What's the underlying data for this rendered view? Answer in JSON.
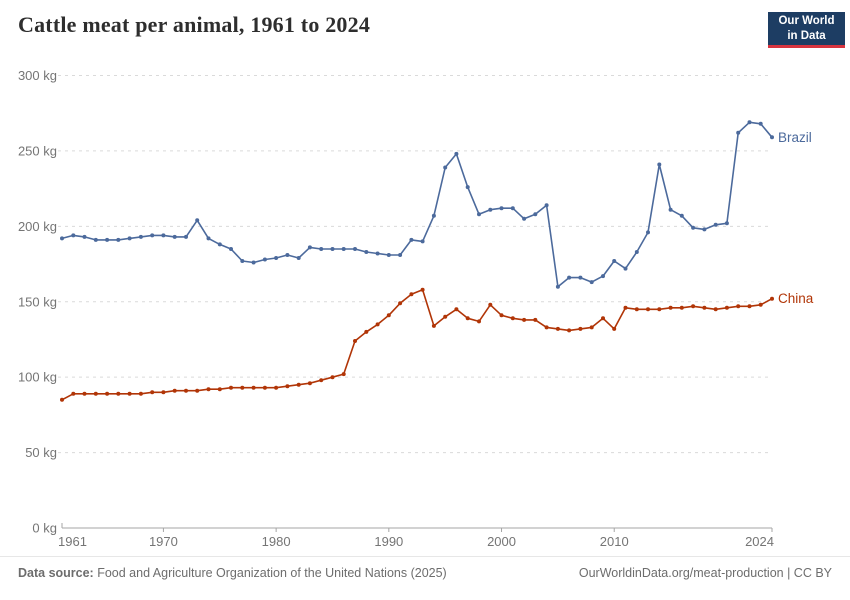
{
  "header": {
    "title": "Cattle meat per animal, 1961 to 2024"
  },
  "logo": {
    "line1": "Our World",
    "line2": "in Data",
    "bg_color": "#1d3d63",
    "bar_color": "#d8343f"
  },
  "footer": {
    "source_label": "Data source:",
    "source_text": " Food and Agriculture Organization of the United Nations (2025)",
    "link_text": "OurWorldinData.org/meat-production | CC BY"
  },
  "chart_data": {
    "type": "line",
    "title": "Cattle meat per animal, 1961 to 2024",
    "unit": "kg",
    "grid": "dashed-horizontal",
    "legend": "end-of-line-labels",
    "ylim": [
      0,
      300
    ],
    "xlim": [
      1961,
      2024
    ],
    "y_ticks": [
      {
        "value": 0,
        "label": "0 kg"
      },
      {
        "value": 50,
        "label": "50 kg"
      },
      {
        "value": 100,
        "label": "100 kg"
      },
      {
        "value": 150,
        "label": "150 kg"
      },
      {
        "value": 200,
        "label": "200 kg"
      },
      {
        "value": 250,
        "label": "250 kg"
      },
      {
        "value": 300,
        "label": "300 kg"
      }
    ],
    "x_ticks": [
      {
        "value": 1961,
        "label": "1961"
      },
      {
        "value": 1970,
        "label": "1970"
      },
      {
        "value": 1980,
        "label": "1980"
      },
      {
        "value": 1990,
        "label": "1990"
      },
      {
        "value": 2000,
        "label": "2000"
      },
      {
        "value": 2010,
        "label": "2010"
      },
      {
        "value": 2024,
        "label": "2024"
      }
    ],
    "x": [
      1961,
      1962,
      1963,
      1964,
      1965,
      1966,
      1967,
      1968,
      1969,
      1970,
      1971,
      1972,
      1973,
      1974,
      1975,
      1976,
      1977,
      1978,
      1979,
      1980,
      1981,
      1982,
      1983,
      1984,
      1985,
      1986,
      1987,
      1988,
      1989,
      1990,
      1991,
      1992,
      1993,
      1994,
      1995,
      1996,
      1997,
      1998,
      1999,
      2000,
      2001,
      2002,
      2003,
      2004,
      2005,
      2006,
      2007,
      2008,
      2009,
      2010,
      2011,
      2012,
      2013,
      2014,
      2015,
      2016,
      2017,
      2018,
      2019,
      2020,
      2021,
      2022,
      2023,
      2024
    ],
    "series": [
      {
        "name": "Brazil",
        "color": "#4c6a9c",
        "values": [
          192,
          194,
          193,
          191,
          191,
          191,
          192,
          193,
          194,
          194,
          193,
          193,
          204,
          192,
          188,
          185,
          177,
          176,
          178,
          179,
          181,
          179,
          186,
          185,
          185,
          185,
          185,
          183,
          182,
          181,
          181,
          191,
          190,
          207,
          239,
          248,
          226,
          208,
          211,
          212,
          212,
          205,
          208,
          214,
          160,
          166,
          166,
          163,
          167,
          177,
          172,
          183,
          196,
          241,
          211,
          207,
          199,
          198,
          201,
          202,
          262,
          269,
          268,
          259
        ]
      },
      {
        "name": "China",
        "color": "#b13507",
        "values": [
          85,
          89,
          89,
          89,
          89,
          89,
          89,
          89,
          90,
          90,
          91,
          91,
          91,
          92,
          92,
          93,
          93,
          93,
          93,
          93,
          94,
          95,
          96,
          98,
          100,
          102,
          124,
          130,
          135,
          141,
          149,
          155,
          158,
          134,
          140,
          145,
          139,
          137,
          148,
          141,
          139,
          138,
          138,
          133,
          132,
          131,
          132,
          133,
          139,
          132,
          146,
          145,
          145,
          145,
          146,
          146,
          147,
          146,
          145,
          146,
          147,
          147,
          148,
          152
        ]
      }
    ]
  }
}
